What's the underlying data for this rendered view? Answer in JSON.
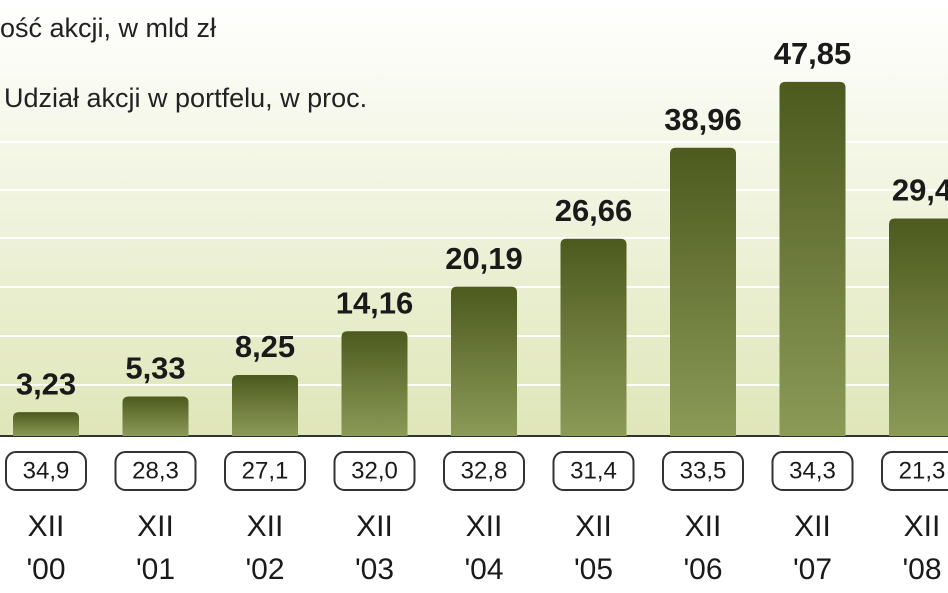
{
  "chart_data": {
    "type": "bar",
    "title": "ość akcji, w mld zł",
    "subtitle": "Udział akcji w portfelu, w proc.",
    "categories": [
      [
        "XII",
        "'00"
      ],
      [
        "XII",
        "'01"
      ],
      [
        "XII",
        "'02"
      ],
      [
        "XII",
        "'03"
      ],
      [
        "XII",
        "'04"
      ],
      [
        "XII",
        "'05"
      ],
      [
        "XII",
        "'06"
      ],
      [
        "XII",
        "'07"
      ],
      [
        "XII",
        "'08"
      ]
    ],
    "values": [
      3.23,
      5.33,
      8.25,
      14.16,
      20.19,
      26.66,
      38.96,
      47.85,
      29.4
    ],
    "value_labels": [
      "3,23",
      "5,33",
      "8,25",
      "14,16",
      "20,19",
      "26,66",
      "38,96",
      "47,85",
      "29,4"
    ],
    "share_values": [
      34.9,
      28.3,
      27.1,
      32.0,
      32.8,
      31.4,
      33.5,
      34.3,
      21.3
    ],
    "share_labels": [
      "34,9",
      "28,3",
      "27,1",
      "32,0",
      "32,8",
      "31,4",
      "33,5",
      "34,3",
      "21,3"
    ],
    "color": "#5a6a2a",
    "ylim": [
      0,
      50
    ]
  }
}
